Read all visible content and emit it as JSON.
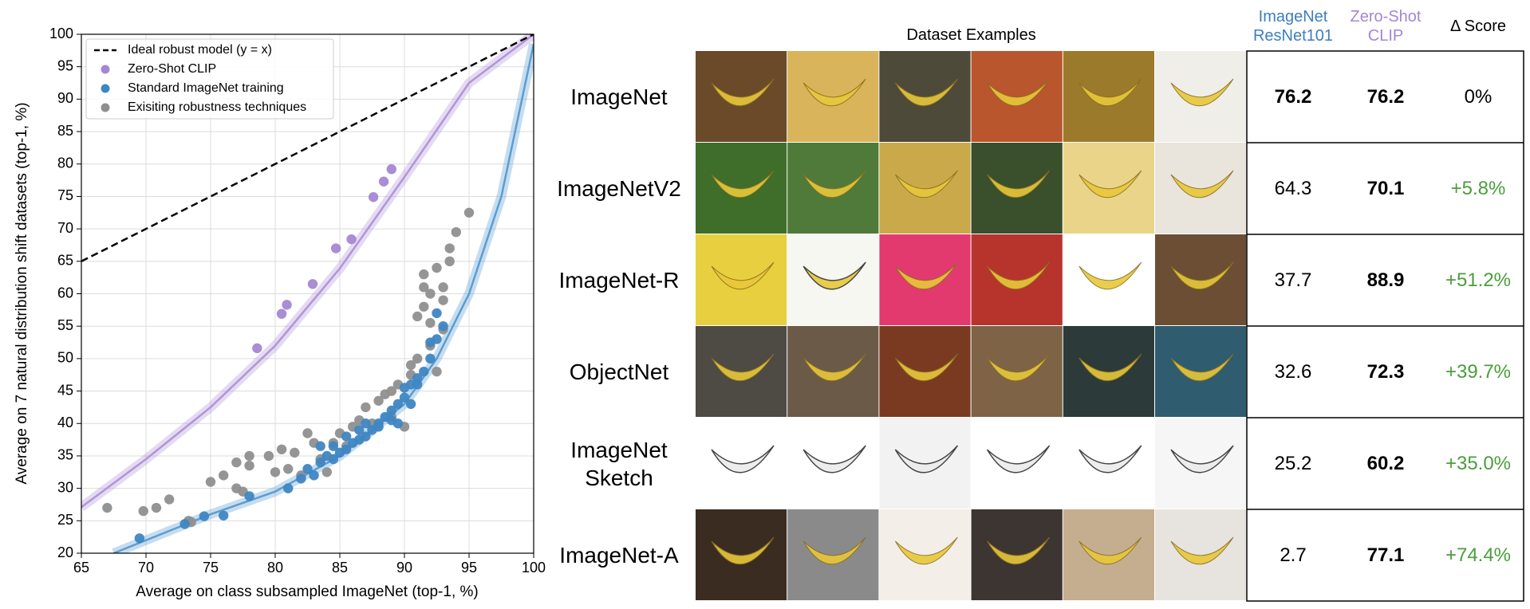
{
  "chart_data": {
    "type": "scatter",
    "xlabel": "Average on class subsampled ImageNet (top-1, %)",
    "ylabel": "Average on 7 natural distribution shift datasets (top-1, %)",
    "xlim": [
      65,
      100
    ],
    "ylim": [
      20,
      100
    ],
    "xticks": [
      65,
      70,
      75,
      80,
      85,
      90,
      95,
      100
    ],
    "yticks": [
      20,
      25,
      30,
      35,
      40,
      45,
      50,
      55,
      60,
      65,
      70,
      75,
      80,
      85,
      90,
      95,
      100
    ],
    "grid": true,
    "legend": "upper left",
    "series": [
      {
        "name": "Ideal robust model (y = x)",
        "color": "#000000",
        "mode": "dashed",
        "x": [
          65,
          100
        ],
        "y": [
          65,
          100
        ]
      },
      {
        "name": "Zero-Shot CLIP",
        "color": "#a487d3",
        "mode": "markers",
        "x": [
          78.6,
          80.5,
          80.9,
          82.9,
          84.7,
          85.9,
          87.6,
          88.4,
          89.0
        ],
        "y": [
          51.6,
          56.9,
          58.3,
          61.5,
          67.0,
          68.4,
          74.9,
          77.3,
          79.2
        ]
      },
      {
        "name": "Standard ImageNet training",
        "color": "#3f86c2",
        "mode": "markers",
        "x": [
          69.5,
          73,
          74.5,
          76,
          78,
          81,
          82,
          82.5,
          83,
          83.5,
          84,
          84.5,
          85,
          85.5,
          86,
          86.5,
          87,
          87.5,
          88,
          88.5,
          89,
          89.5,
          89,
          89.5,
          90,
          90,
          90.5,
          91,
          91.5,
          92,
          92,
          92.5,
          93,
          92.5,
          88,
          87,
          86.5,
          85.5,
          84.5,
          83.5,
          90.5,
          91
        ],
        "y": [
          22.3,
          24.5,
          25.7,
          25.8,
          28.8,
          30,
          31.5,
          33,
          32,
          34,
          35,
          34.5,
          35.5,
          36,
          37,
          37.5,
          38,
          39,
          40,
          41,
          40.5,
          40,
          42,
          43,
          44,
          45.5,
          46,
          47,
          48,
          50,
          52.5,
          53,
          55,
          57,
          39.5,
          40,
          39,
          38,
          36.5,
          36.5,
          43,
          46
        ]
      },
      {
        "name": "Exisiting robustness techniques",
        "color": "#8f8f8f",
        "mode": "markers",
        "x": [
          67,
          69.8,
          70.8,
          71.8,
          73.3,
          73.5,
          75,
          76,
          77,
          77,
          77.5,
          78,
          78,
          79.5,
          80,
          80.5,
          81,
          81.5,
          82,
          82.5,
          83,
          83.5,
          84,
          84.5,
          85,
          85.5,
          86,
          86.5,
          87,
          87.5,
          88,
          88.5,
          89,
          89.5,
          90,
          90.5,
          91,
          91,
          91.5,
          91.5,
          92,
          92,
          92,
          92.5,
          92.5,
          93,
          93,
          93,
          93.5,
          94,
          93.5,
          95,
          91.5,
          90.5,
          89
        ],
        "y": [
          27,
          26.5,
          27,
          28.3,
          25,
          24.8,
          31,
          32,
          34,
          30,
          29.5,
          33.5,
          35,
          35,
          32.5,
          36,
          33,
          35.5,
          32,
          38.5,
          37,
          34.5,
          32.5,
          37,
          38.5,
          36.5,
          39.5,
          40.5,
          42.5,
          40,
          43.5,
          44.5,
          45,
          46,
          39.5,
          47.5,
          50,
          56.5,
          58,
          63,
          52,
          60,
          55.5,
          64,
          48,
          61,
          54.5,
          59,
          67,
          69.5,
          65,
          72.5,
          61,
          49,
          41
        ]
      },
      {
        "color": "#b195d9",
        "mode": "band",
        "x": [
          65,
          70,
          75,
          80,
          85,
          90,
          95,
          100
        ],
        "y": [
          27.1,
          34.5,
          42.5,
          52,
          63.9,
          78,
          92.5,
          100
        ]
      },
      {
        "color": "#5b9dd2",
        "mode": "band",
        "x": [
          67.5,
          70,
          75,
          80,
          85,
          90,
          92.5,
          95,
          97.5,
          100
        ],
        "y": [
          20,
          22,
          26,
          29.5,
          35,
          43,
          50,
          60,
          75,
          98.5
        ]
      }
    ]
  },
  "table": {
    "header": [
      "Dataset Examples",
      "ImageNet ResNet101",
      "Zero-Shot CLIP",
      "Δ Score"
    ],
    "rows": [
      [
        "ImageNet",
        "76.2",
        "76.2",
        "0%"
      ],
      [
        "ImageNetV2",
        "64.3",
        "70.1",
        "+5.8%"
      ],
      [
        "ImageNet-R",
        "37.7",
        "88.9",
        "+51.2%"
      ],
      [
        "ObjectNet",
        "32.6",
        "72.3",
        "+39.7%"
      ],
      [
        "ImageNet Sketch",
        "25.2",
        "60.2",
        "+35.0%"
      ],
      [
        "ImageNet-A",
        "2.7",
        "77.1",
        "+74.4%"
      ]
    ]
  }
}
